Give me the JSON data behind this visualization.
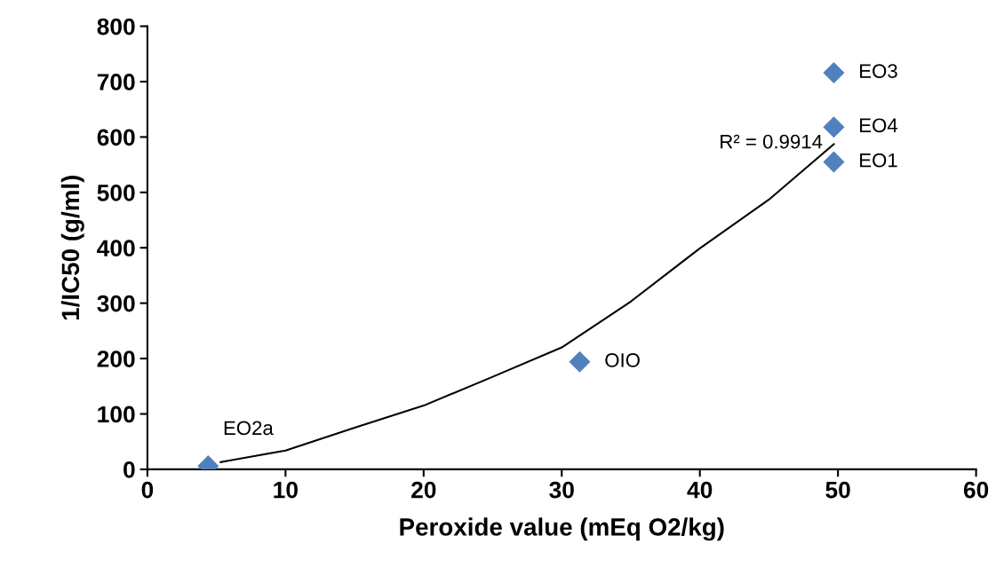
{
  "chart_data": {
    "type": "scatter",
    "xlabel": "Peroxide value (mEq O2/kg)",
    "ylabel": "1/IC50 (g/ml)",
    "xlim": [
      0,
      60
    ],
    "xticks": [
      0,
      10,
      20,
      30,
      40,
      50,
      60
    ],
    "ylim": [
      0,
      800
    ],
    "yticks": [
      0,
      100,
      200,
      300,
      400,
      500,
      600,
      700,
      800
    ],
    "grid": false,
    "marker": "diamond",
    "series": [
      {
        "color": "#4f81bd",
        "x": [
          4.4,
          31.3,
          49.7,
          49.7,
          49.7
        ],
        "values": [
          6,
          194,
          716,
          618,
          555
        ]
      },
      {
        "type": "line",
        "color": "#000000",
        "line_style": "solid",
        "marker": "none",
        "x": [
          5.3,
          10,
          15,
          20,
          25,
          30,
          35,
          40,
          45,
          49.7
        ],
        "values": [
          13,
          34,
          75,
          115,
          167,
          220,
          303,
          399,
          487,
          587
        ]
      }
    ],
    "annotations": [
      {
        "text": "EO2a",
        "x": 4.4,
        "y": 6
      },
      {
        "text": "OIO",
        "x": 31.3,
        "y": 194
      },
      {
        "text": "EO3",
        "x": 49.7,
        "y": 716
      },
      {
        "text": "EO4",
        "x": 49.7,
        "y": 618
      },
      {
        "text": "EO1",
        "x": 49.7,
        "y": 555
      },
      "R² = 0.9914"
    ]
  }
}
